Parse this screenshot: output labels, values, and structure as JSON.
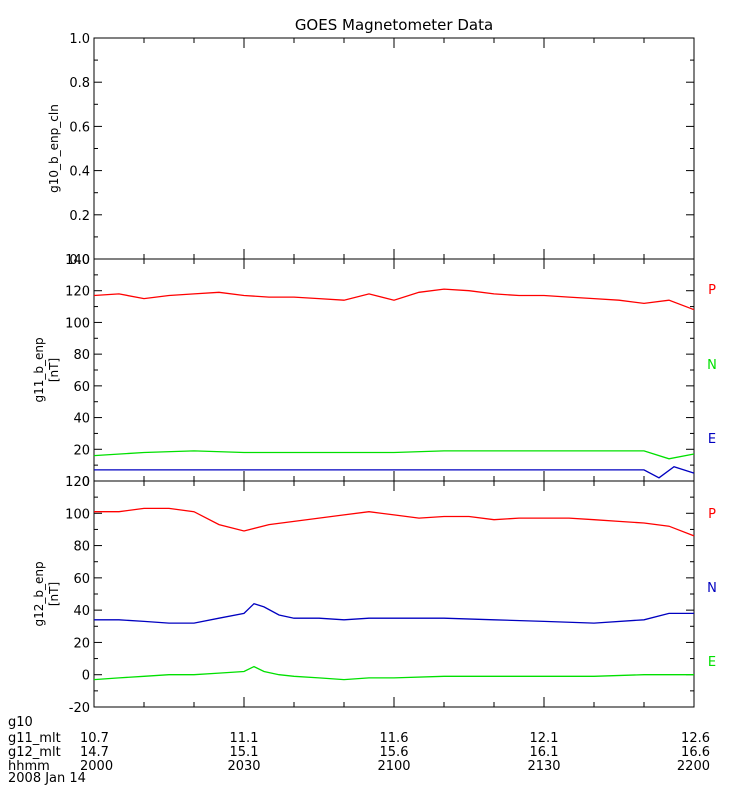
{
  "title": "GOES Magnetometer Data",
  "chart_data": {
    "type": "line",
    "date_label": "2008 Jan 14",
    "x_row_labels": [
      "g10",
      "g11_mlt",
      "g12_mlt",
      "hhmm"
    ],
    "x_ticks": [
      {
        "g11_mlt": "10.7",
        "g12_mlt": "14.7",
        "hhmm": "2000"
      },
      {
        "g11_mlt": "11.1",
        "g12_mlt": "15.1",
        "hhmm": "2030"
      },
      {
        "g11_mlt": "11.6",
        "g12_mlt": "15.6",
        "hhmm": "2100"
      },
      {
        "g11_mlt": "12.1",
        "g12_mlt": "16.1",
        "hhmm": "2130"
      },
      {
        "g11_mlt": "12.6",
        "g12_mlt": "16.6",
        "hhmm": "2200"
      }
    ],
    "xlim": [
      "2000",
      "2200"
    ],
    "panels": [
      {
        "ylabel": "g10_b_enp_cln",
        "unit": "",
        "ylim": [
          0,
          1
        ],
        "yticks": [
          "0.0",
          "0.2",
          "0.4",
          "0.6",
          "0.8",
          "1.0"
        ],
        "series": []
      },
      {
        "ylabel": "g11_b_enp",
        "unit": "[nT]",
        "ylim": [
          0,
          140
        ],
        "yticks": [
          "0",
          "20",
          "40",
          "60",
          "80",
          "100",
          "120",
          "140"
        ],
        "series": [
          {
            "name": "P",
            "color": "#ff0000",
            "x": [
              "2000",
              "2005",
              "2010",
              "2015",
              "2020",
              "2025",
              "2030",
              "2035",
              "2040",
              "2045",
              "2050",
              "2055",
              "2100",
              "2105",
              "2110",
              "2115",
              "2120",
              "2125",
              "2130",
              "2135",
              "2140",
              "2145",
              "2150",
              "2155",
              "2200"
            ],
            "values": [
              117,
              118,
              115,
              117,
              118,
              119,
              117,
              116,
              116,
              115,
              114,
              118,
              114,
              119,
              121,
              120,
              118,
              117,
              117,
              116,
              115,
              114,
              112,
              114,
              108
            ]
          },
          {
            "name": "N",
            "color": "#00e000",
            "x": [
              "2000",
              "2010",
              "2020",
              "2030",
              "2040",
              "2050",
              "2100",
              "2110",
              "2120",
              "2130",
              "2140",
              "2150",
              "2155",
              "2200"
            ],
            "values": [
              16,
              18,
              19,
              18,
              18,
              18,
              18,
              19,
              19,
              19,
              19,
              19,
              14,
              17
            ]
          },
          {
            "name": "E",
            "color": "#0000c0",
            "x": [
              "2000",
              "2010",
              "2020",
              "2030",
              "2040",
              "2050",
              "2100",
              "2110",
              "2120",
              "2130",
              "2140",
              "2150",
              "2153",
              "2156",
              "2200"
            ],
            "values": [
              7,
              7,
              7,
              7,
              7,
              7,
              7,
              7,
              7,
              7,
              7,
              7,
              2,
              9,
              5
            ]
          }
        ]
      },
      {
        "ylabel": "g12_b_enp",
        "unit": "[nT]",
        "ylim": [
          -20,
          120
        ],
        "yticks": [
          "-20",
          "0",
          "20",
          "40",
          "60",
          "80",
          "100",
          "120"
        ],
        "series": [
          {
            "name": "P",
            "color": "#ff0000",
            "x": [
              "2000",
              "2005",
              "2010",
              "2015",
              "2020",
              "2025",
              "2030",
              "2035",
              "2040",
              "2045",
              "2050",
              "2055",
              "2100",
              "2105",
              "2110",
              "2115",
              "2120",
              "2125",
              "2130",
              "2135",
              "2140",
              "2145",
              "2150",
              "2155",
              "2200"
            ],
            "values": [
              101,
              101,
              103,
              103,
              101,
              93,
              89,
              93,
              95,
              97,
              99,
              101,
              99,
              97,
              98,
              98,
              96,
              97,
              97,
              97,
              96,
              95,
              94,
              92,
              86
            ]
          },
          {
            "name": "N",
            "color": "#0000c0",
            "x": [
              "2000",
              "2005",
              "2010",
              "2015",
              "2020",
              "2025",
              "2030",
              "2032",
              "2034",
              "2037",
              "2040",
              "2045",
              "2050",
              "2055",
              "2100",
              "2110",
              "2120",
              "2130",
              "2140",
              "2150",
              "2155",
              "2200"
            ],
            "values": [
              34,
              34,
              33,
              32,
              32,
              35,
              38,
              44,
              42,
              37,
              35,
              35,
              34,
              35,
              35,
              35,
              34,
              33,
              32,
              34,
              38,
              38
            ]
          },
          {
            "name": "E",
            "color": "#00e000",
            "x": [
              "2000",
              "2005",
              "2010",
              "2015",
              "2020",
              "2025",
              "2030",
              "2032",
              "2034",
              "2037",
              "2040",
              "2045",
              "2050",
              "2055",
              "2100",
              "2110",
              "2120",
              "2130",
              "2140",
              "2150",
              "2155",
              "2200"
            ],
            "values": [
              -3,
              -2,
              -1,
              0,
              0,
              1,
              2,
              5,
              2,
              0,
              -1,
              -2,
              -3,
              -2,
              -2,
              -1,
              -1,
              -1,
              -1,
              0,
              0,
              0
            ]
          }
        ]
      }
    ]
  }
}
